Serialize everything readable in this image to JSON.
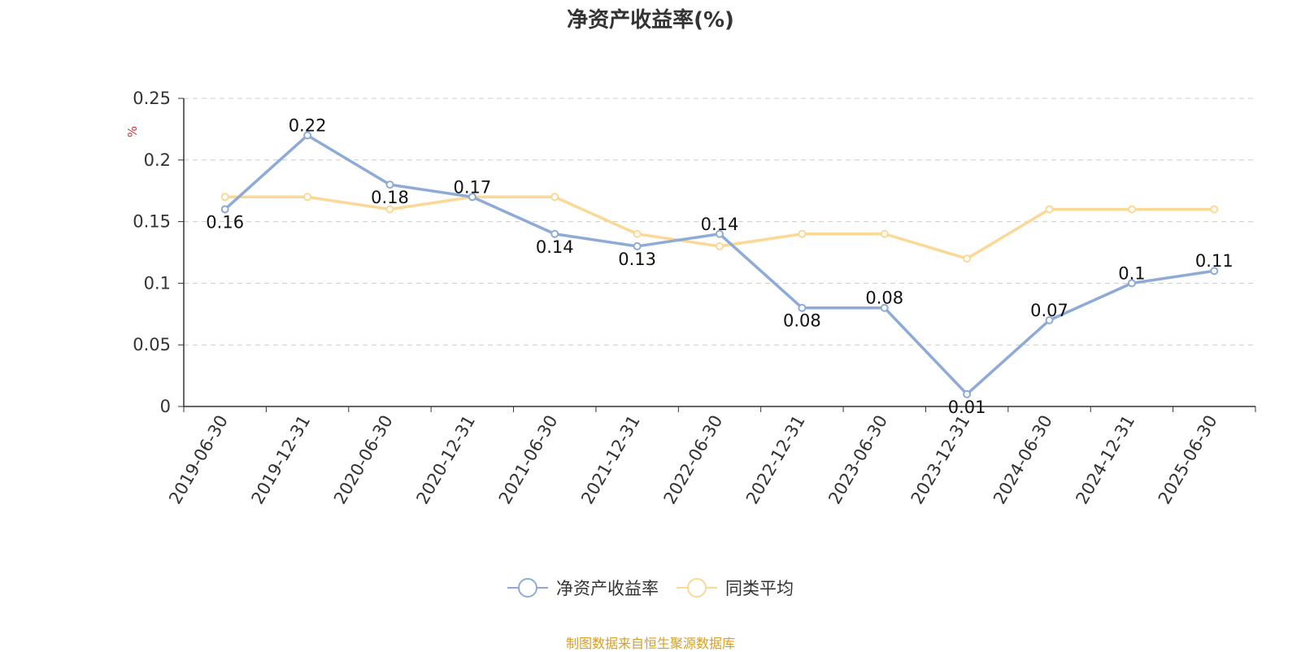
{
  "chart_data": {
    "type": "line",
    "title": "净资产收益率(%)",
    "ylabel": "%",
    "xlabel": "",
    "categories": [
      "2019-06-30",
      "2019-12-31",
      "2020-06-30",
      "2020-12-31",
      "2021-06-30",
      "2021-12-31",
      "2022-06-30",
      "2022-12-31",
      "2023-06-30",
      "2023-12-31",
      "2024-06-30",
      "2024-12-31",
      "2025-06-30"
    ],
    "ylim": [
      0,
      0.25
    ],
    "yticks": [
      0,
      0.05,
      0.1,
      0.15,
      0.2,
      0.25
    ],
    "ytick_labels": [
      "0",
      "0.05",
      "0.1",
      "0.15",
      "0.2",
      "0.25"
    ],
    "grid": true,
    "legend_position": "bottom-center",
    "series": [
      {
        "name": "净资产收益率",
        "color": "#8eabd8",
        "show_labels": true,
        "values": [
          0.16,
          0.22,
          0.18,
          0.17,
          0.14,
          0.13,
          0.14,
          0.08,
          0.08,
          0.01,
          0.07,
          0.1,
          0.11
        ]
      },
      {
        "name": "同类平均",
        "color": "#fbd896",
        "show_labels": false,
        "values": [
          0.17,
          0.17,
          0.16,
          0.17,
          0.17,
          0.14,
          0.13,
          0.14,
          0.14,
          0.12,
          0.16,
          0.16,
          0.16
        ]
      }
    ]
  },
  "footer": {
    "source": "制图数据来自恒生聚源数据库"
  },
  "colors": {
    "axis": "#333333",
    "grid": "#cccccc",
    "ylabel": "#e03030",
    "source": "#d4a026"
  }
}
